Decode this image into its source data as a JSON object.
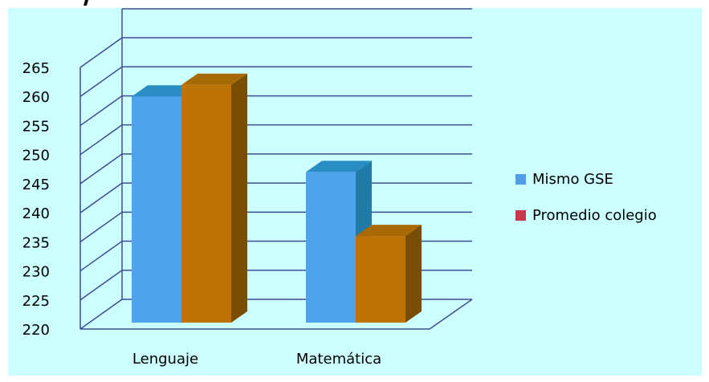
{
  "chart_data": {
    "type": "bar",
    "title": "",
    "xlabel": "",
    "ylabel": "",
    "categories": [
      "Lenguaje",
      "Matemática"
    ],
    "series": [
      {
        "name": "Mismo GSE",
        "values": [
          260,
          247
        ],
        "legend_color": "#4F9FE8"
      },
      {
        "name": "Promedio colegio",
        "values": [
          262,
          236
        ],
        "legend_color": "#C8374E"
      }
    ],
    "ylim": [
      220,
      265
    ],
    "yticks": [
      220,
      225,
      230,
      235,
      240,
      245,
      250,
      255,
      260,
      265
    ],
    "grid": true,
    "legend_position": "right",
    "colors": {
      "background": "#CCFFFF",
      "gridline": "#3E4C94",
      "series1_front": "#4DA3EE",
      "series1_top": "#2A8DC3",
      "series1_side": "#217BA6",
      "series2_front": "#BD7305",
      "series2_top": "#A86A05",
      "series2_side": "#7A4E02",
      "axis_text": "#000000"
    }
  }
}
